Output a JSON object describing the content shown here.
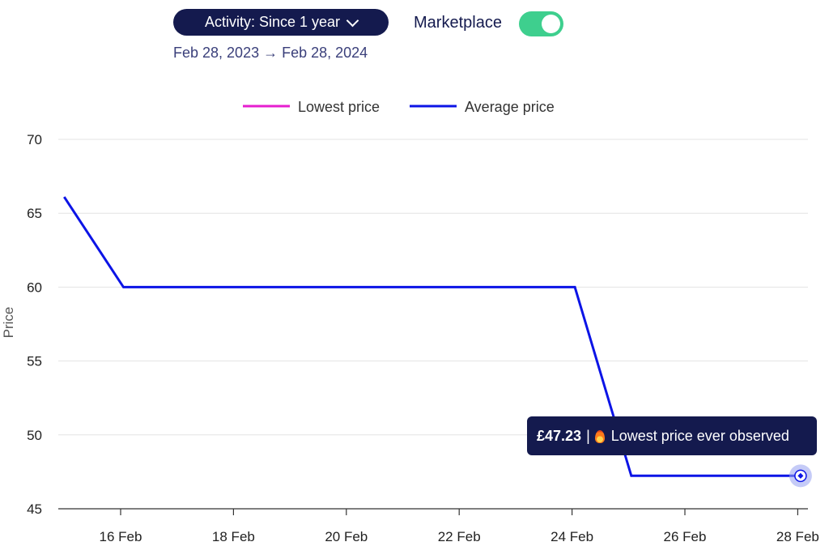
{
  "controls": {
    "activity_label": "Activity: Since 1 year",
    "date_range": "Feb 28, 2023 → Feb 28, 2024",
    "marketplace_label": "Marketplace",
    "marketplace_enabled": true
  },
  "tooltip": {
    "price": "£47.23",
    "separator": "|",
    "message": "Lowest price ever observed",
    "icon": "flame-icon"
  },
  "colors": {
    "lowest": "#e61ecf",
    "average": "#0c14e6",
    "toggle_on": "#3ecf8e",
    "dark": "#141a4e"
  },
  "chart_data": {
    "type": "line",
    "ylabel": "Price",
    "xlabel": "",
    "ylim": [
      45,
      70
    ],
    "yticks": [
      45,
      50,
      55,
      60,
      65,
      70
    ],
    "x_ticks": [
      {
        "day": 16,
        "label": "16 Feb"
      },
      {
        "day": 18,
        "label": "18 Feb"
      },
      {
        "day": 20,
        "label": "20 Feb"
      },
      {
        "day": 22,
        "label": "22 Feb"
      },
      {
        "day": 24,
        "label": "24 Feb"
      },
      {
        "day": 26,
        "label": "26 Feb"
      },
      {
        "day": 28,
        "label": "28 Feb"
      }
    ],
    "legend": [
      "Lowest price",
      "Average price"
    ],
    "legend_position": "top",
    "grid": true,
    "series": [
      {
        "name": "Average price",
        "points": [
          {
            "day": 15.0,
            "y": 66.1
          },
          {
            "day": 16.05,
            "y": 60.0
          },
          {
            "day": 24.05,
            "y": 60.0
          },
          {
            "day": 25.05,
            "y": 47.23
          },
          {
            "day": 28.05,
            "y": 47.23
          }
        ]
      }
    ],
    "highlight": {
      "day": 28.05,
      "y": 47.23
    }
  }
}
